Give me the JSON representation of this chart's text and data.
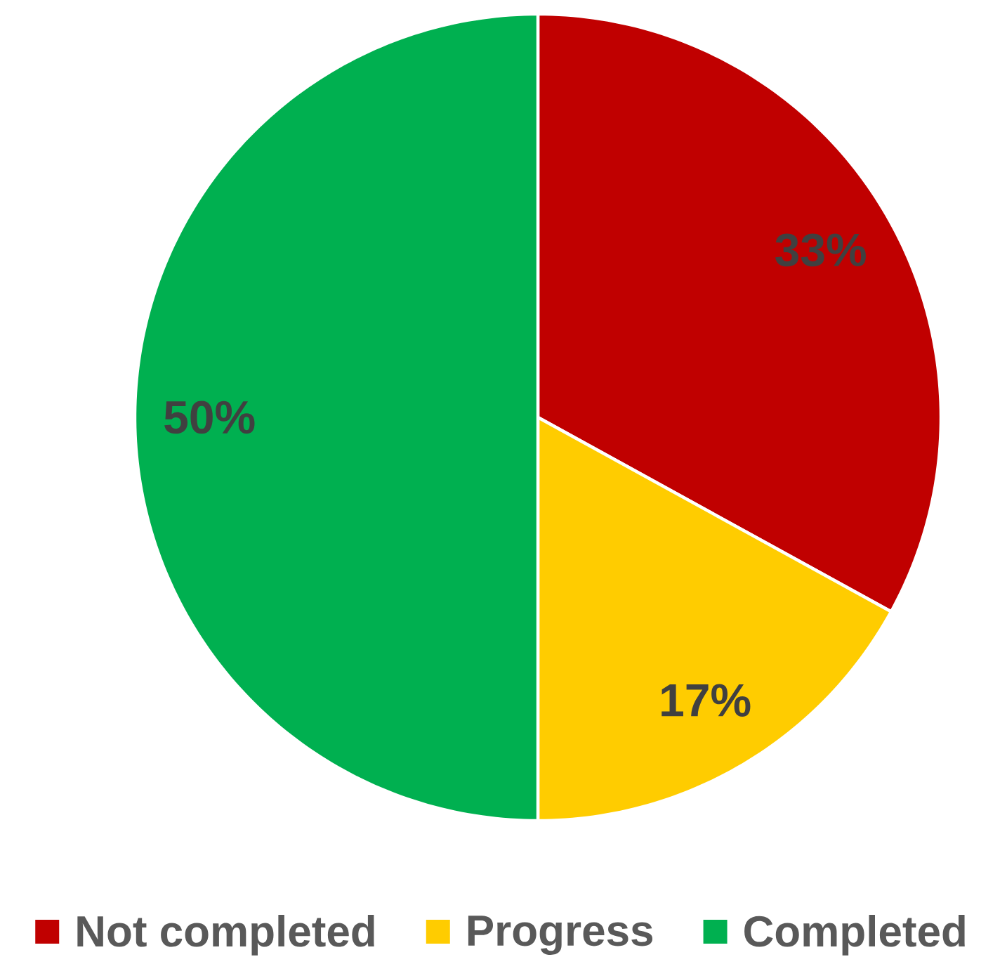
{
  "chart_data": {
    "type": "pie",
    "categories": [
      "Not completed",
      "Progress",
      "Completed"
    ],
    "values": [
      33,
      17,
      50
    ],
    "colors": [
      "#c00000",
      "#ffcc00",
      "#00b050"
    ],
    "value_labels": [
      "33%",
      "17%",
      "50%"
    ],
    "legend": "bottom"
  }
}
